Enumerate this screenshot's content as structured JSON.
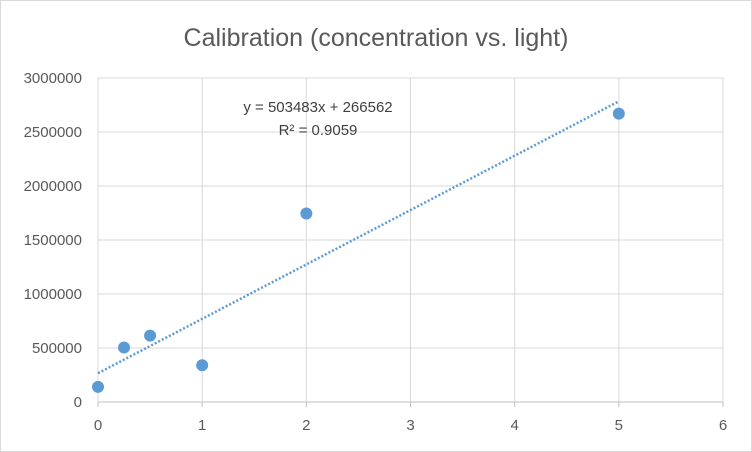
{
  "chart_data": {
    "type": "scatter",
    "title": "Calibration (concentration vs. light)",
    "xlabel": "",
    "ylabel": "",
    "xlim": [
      0,
      6
    ],
    "ylim": [
      0,
      3000000
    ],
    "x_ticks": [
      "0",
      "1",
      "2",
      "3",
      "4",
      "5",
      "6"
    ],
    "y_ticks": [
      "0",
      "500000",
      "1000000",
      "1500000",
      "2000000",
      "2500000",
      "3000000"
    ],
    "grid": true,
    "legend": "none",
    "points": [
      {
        "x": 0,
        "y": 140000
      },
      {
        "x": 0.25,
        "y": 505000
      },
      {
        "x": 0.5,
        "y": 615000
      },
      {
        "x": 1,
        "y": 340000
      },
      {
        "x": 2,
        "y": 1745000
      },
      {
        "x": 5,
        "y": 2670000
      }
    ],
    "trendline": {
      "type": "linear",
      "slope": 503483,
      "intercept": 266562,
      "x_range": [
        0,
        5
      ],
      "equation_label": "y = 503483x + 266562",
      "r2_label": "R² = 0.9059"
    },
    "colors": {
      "marker": "#5b9bd5",
      "trendline": "#5b9bd5",
      "gridline": "#d9d9d9",
      "text": "#595959"
    }
  }
}
